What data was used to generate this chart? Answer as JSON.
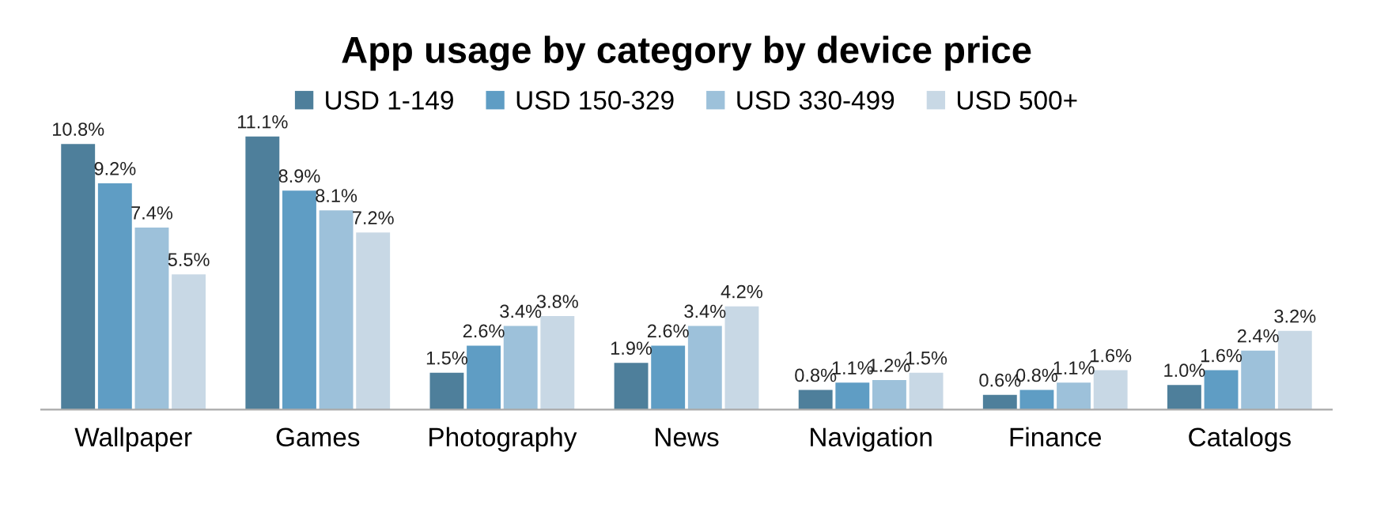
{
  "chart_data": {
    "type": "bar",
    "title": "App usage by category by device price",
    "categories": [
      "Wallpaper",
      "Games",
      "Photography",
      "News",
      "Navigation",
      "Finance",
      "Catalogs"
    ],
    "series": [
      {
        "name": "USD 1-149",
        "color": "#4e7f9b",
        "values": [
          10.8,
          11.1,
          1.5,
          1.9,
          0.8,
          0.6,
          1.0
        ],
        "value_labels": [
          "10.8%",
          "11.1%",
          "1.5%",
          "1.9%",
          "0.8%",
          "0.6%",
          "1.0%"
        ]
      },
      {
        "name": "USD 150-329",
        "color": "#5f9dc4",
        "values": [
          9.2,
          8.9,
          2.6,
          2.6,
          1.1,
          0.8,
          1.6
        ],
        "value_labels": [
          "9.2%",
          "8.9%",
          "2.6%",
          "2.6%",
          "1.1%",
          "0.8%",
          "1.6%"
        ]
      },
      {
        "name": "USD 330-499",
        "color": "#9dc1da",
        "values": [
          7.4,
          8.1,
          3.4,
          3.4,
          1.2,
          1.1,
          2.4
        ],
        "value_labels": [
          "7.4%",
          "8.1%",
          "3.4%",
          "3.4%",
          "1.2%",
          "1.1%",
          "2.4%"
        ]
      },
      {
        "name": "USD 500+",
        "color": "#c8d8e5",
        "values": [
          5.5,
          7.2,
          3.8,
          4.2,
          1.5,
          1.6,
          3.2
        ],
        "value_labels": [
          "5.5%",
          "7.2%",
          "3.8%",
          "4.2%",
          "1.5%",
          "1.6%",
          "3.2%"
        ]
      }
    ],
    "legend": "top",
    "grid": false
  }
}
